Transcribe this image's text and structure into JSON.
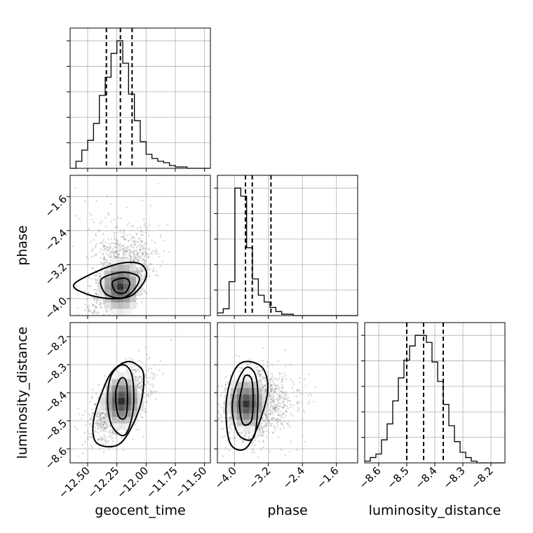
{
  "chart_data": {
    "type": "corner",
    "parameters": [
      "geocent_time",
      "phase",
      "luminosity_distance"
    ],
    "labels": {
      "geocent_time": "geocent_time",
      "phase": "phase",
      "luminosity_distance": "luminosity_distance"
    },
    "ranges": {
      "geocent_time": [
        -12.65,
        -11.45
      ],
      "phase": [
        -4.4,
        -1.1
      ],
      "luminosity_distance": [
        -8.65,
        -8.15
      ]
    },
    "ticks": {
      "geocent_time": [
        -12.5,
        -12.25,
        -12.0,
        -11.75,
        -11.5
      ],
      "phase": [
        -4.0,
        -3.2,
        -2.4,
        -1.6
      ],
      "luminosity_distance": [
        -8.6,
        -8.5,
        -8.4,
        -8.3,
        -8.2
      ]
    },
    "tick_labels": {
      "geocent_time": [
        "−12.50",
        "−12.25",
        "−12.00",
        "−11.75",
        "−11.50"
      ],
      "phase": [
        "−4.0",
        "−3.2",
        "−2.4",
        "−1.6"
      ],
      "luminosity_distance": [
        "−8.6",
        "−8.5",
        "−8.4",
        "−8.3",
        "−8.2"
      ]
    },
    "histograms": {
      "geocent_time": {
        "bin_edges": [
          -12.65,
          -12.6,
          -12.55,
          -12.5,
          -12.45,
          -12.4,
          -12.35,
          -12.3,
          -12.25,
          -12.2,
          -12.15,
          -12.1,
          -12.05,
          -12.0,
          -11.95,
          -11.9,
          -11.85,
          -11.8,
          -11.75,
          -11.7,
          -11.65,
          -11.6,
          -11.55,
          -11.5,
          -11.45
        ],
        "counts": [
          0,
          5,
          13,
          20,
          32,
          52,
          65,
          82,
          91,
          75,
          53,
          34,
          19,
          10,
          7,
          5,
          4,
          2,
          1,
          1,
          0,
          0,
          0,
          0
        ],
        "quantiles": [
          -12.34,
          -12.22,
          -12.12
        ]
      },
      "phase": {
        "bin_edges": [
          -4.4,
          -4.2625,
          -4.125,
          -3.9875,
          -3.85,
          -3.7125,
          -3.575,
          -3.4375,
          -3.3,
          -3.1625,
          -3.025,
          -2.8875,
          -2.75,
          -2.6125,
          -2.475,
          -2.3375,
          -2.2,
          -2.0625,
          -1.925,
          -1.7875,
          -1.65,
          -1.5125,
          -1.375,
          -1.2375,
          -1.1
        ],
        "counts": [
          2,
          5,
          25,
          94,
          88,
          50,
          27,
          15,
          10,
          6,
          3,
          1,
          1,
          0,
          0,
          0,
          0,
          0,
          0,
          0,
          0,
          0,
          0,
          0
        ],
        "quantiles": [
          -3.74,
          -3.58,
          -3.14
        ]
      },
      "luminosity_distance": {
        "bin_edges": [
          -8.65,
          -8.63,
          -8.61,
          -8.59,
          -8.57,
          -8.55,
          -8.53,
          -8.51,
          -8.49,
          -8.47,
          -8.45,
          -8.43,
          -8.41,
          -8.39,
          -8.37,
          -8.35,
          -8.33,
          -8.31,
          -8.29,
          -8.27,
          -8.25,
          -8.23,
          -8.21,
          -8.19,
          -8.17,
          -8.15
        ],
        "counts": [
          1,
          3,
          5,
          13,
          22,
          35,
          48,
          58,
          66,
          72,
          72,
          68,
          57,
          46,
          33,
          21,
          12,
          6,
          3,
          1,
          0,
          0,
          0,
          0,
          0
        ],
        "quantiles": [
          -8.5,
          -8.44,
          -8.37
        ]
      }
    },
    "pairs": [
      {
        "x": "geocent_time",
        "y": "phase",
        "correlation": 0.6,
        "center": [
          -12.22,
          -3.58
        ],
        "sd": [
          0.13,
          0.42
        ],
        "peak": [
          -12.22,
          -3.72
        ],
        "contours": [
          [
            [
              -12.29,
              -3.64
            ],
            [
              -12.26,
              -3.84
            ],
            [
              -12.18,
              -3.86
            ],
            [
              -12.14,
              -3.64
            ],
            [
              -12.18,
              -3.52
            ],
            [
              -12.26,
              -3.56
            ]
          ],
          [
            [
              -12.39,
              -3.6
            ],
            [
              -12.34,
              -3.9
            ],
            [
              -12.2,
              -3.98
            ],
            [
              -12.1,
              -3.78
            ],
            [
              -12.06,
              -3.5
            ],
            [
              -12.18,
              -3.38
            ],
            [
              -12.33,
              -3.46
            ]
          ],
          [
            [
              -12.62,
              -3.68
            ],
            [
              -12.5,
              -3.9
            ],
            [
              -12.3,
              -4.0
            ],
            [
              -12.12,
              -3.92
            ],
            [
              -12.0,
              -3.5
            ],
            [
              -12.04,
              -3.2
            ],
            [
              -12.2,
              -3.16
            ],
            [
              -12.42,
              -3.36
            ]
          ]
        ]
      },
      {
        "x": "geocent_time",
        "y": "luminosity_distance",
        "correlation": 0.55,
        "center": [
          -12.22,
          -8.44
        ],
        "sd": [
          0.12,
          0.06
        ],
        "peak": [
          -12.21,
          -8.43
        ],
        "contours": [
          [
            [
              -12.26,
              -8.4
            ],
            [
              -12.24,
              -8.48
            ],
            [
              -12.18,
              -8.49
            ],
            [
              -12.16,
              -8.44
            ],
            [
              -12.17,
              -8.36
            ],
            [
              -12.22,
              -8.35
            ]
          ],
          [
            [
              -12.33,
              -8.43
            ],
            [
              -12.29,
              -8.52
            ],
            [
              -12.18,
              -8.55
            ],
            [
              -12.11,
              -8.46
            ],
            [
              -12.12,
              -8.34
            ],
            [
              -12.2,
              -8.3
            ],
            [
              -12.3,
              -8.34
            ]
          ],
          [
            [
              -12.45,
              -8.5
            ],
            [
              -12.42,
              -8.58
            ],
            [
              -12.22,
              -8.58
            ],
            [
              -12.06,
              -8.46
            ],
            [
              -12.02,
              -8.34
            ],
            [
              -12.08,
              -8.3
            ],
            [
              -12.17,
              -8.29
            ],
            [
              -12.28,
              -8.32
            ],
            [
              -12.36,
              -8.38
            ]
          ]
        ]
      },
      {
        "x": "phase",
        "y": "luminosity_distance",
        "correlation": 0.1,
        "center": [
          -3.65,
          -8.44
        ],
        "sd": [
          0.35,
          0.06
        ],
        "peak": [
          -3.72,
          -8.44
        ],
        "contours": [
          [
            [
              -3.82,
              -8.38
            ],
            [
              -3.88,
              -8.44
            ],
            [
              -3.8,
              -8.51
            ],
            [
              -3.6,
              -8.5
            ],
            [
              -3.56,
              -8.42
            ],
            [
              -3.6,
              -8.35
            ],
            [
              -3.75,
              -8.34
            ]
          ],
          [
            [
              -3.95,
              -8.37
            ],
            [
              -4.05,
              -8.46
            ],
            [
              -3.9,
              -8.55
            ],
            [
              -3.55,
              -8.56
            ],
            [
              -3.45,
              -8.44
            ],
            [
              -3.5,
              -8.34
            ],
            [
              -3.72,
              -8.31
            ]
          ],
          [
            [
              -4.1,
              -8.36
            ],
            [
              -4.2,
              -8.46
            ],
            [
              -4.1,
              -8.58
            ],
            [
              -3.75,
              -8.6
            ],
            [
              -3.45,
              -8.52
            ],
            [
              -3.22,
              -8.4
            ],
            [
              -3.3,
              -8.32
            ],
            [
              -3.6,
              -8.29
            ],
            [
              -3.9,
              -8.3
            ]
          ]
        ]
      }
    ],
    "grid": true
  }
}
